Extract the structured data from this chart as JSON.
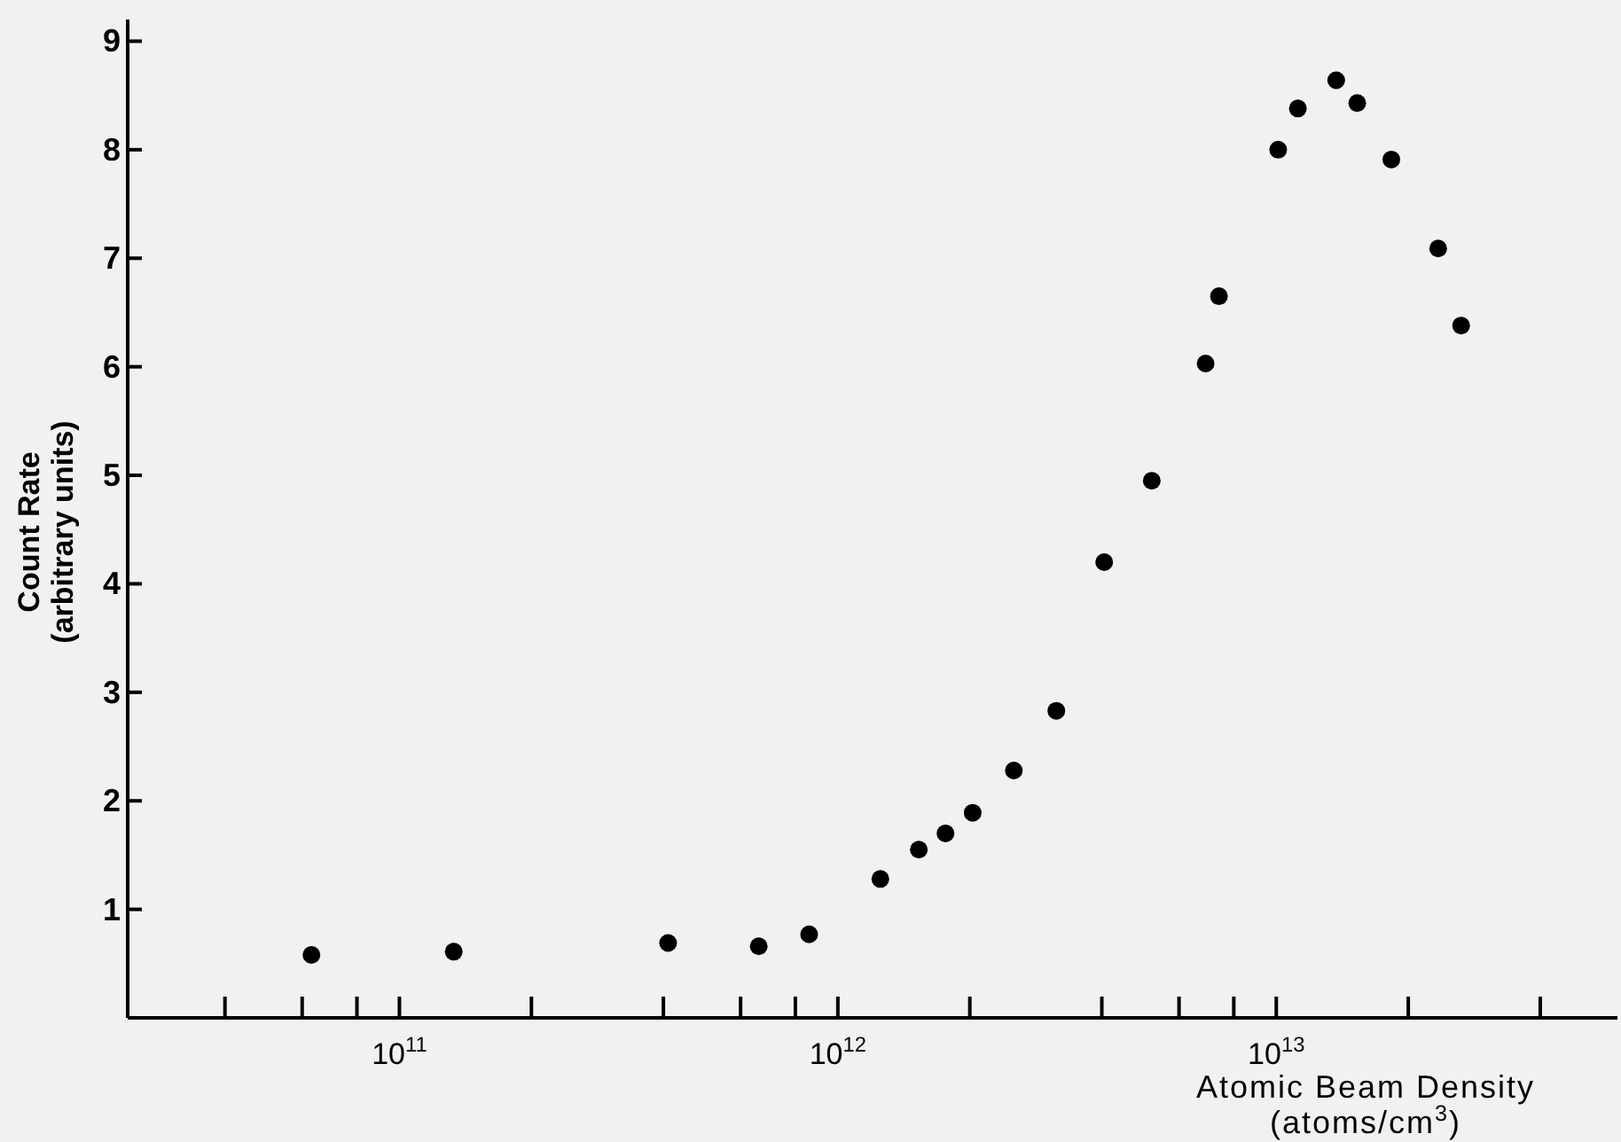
{
  "chart_data": {
    "type": "scatter",
    "xlabel": "Atomic Beam Density\n(atoms/cm$^{3}$)",
    "ylabel": "Count Rate\n(arbitrary units)",
    "log": "x",
    "marker": "circle",
    "grid": false,
    "xlim": [
      24000000000.0,
      60000000000000.0
    ],
    "ylim": [
      0,
      9.2
    ],
    "xticks": [
      {
        "value": 40000000000.0,
        "label": null
      },
      {
        "value": 60000000000.0,
        "label": null
      },
      {
        "value": 80000000000.0,
        "label": null
      },
      {
        "value": 100000000000.0,
        "label": "10$^{11}$"
      },
      {
        "value": 200000000000.0,
        "label": null
      },
      {
        "value": 400000000000.0,
        "label": null
      },
      {
        "value": 600000000000.0,
        "label": null
      },
      {
        "value": 800000000000.0,
        "label": null
      },
      {
        "value": 1000000000000.0,
        "label": "10$^{12}$"
      },
      {
        "value": 2000000000000.0,
        "label": null
      },
      {
        "value": 4000000000000.0,
        "label": null
      },
      {
        "value": 6000000000000.0,
        "label": null
      },
      {
        "value": 8000000000000.0,
        "label": null
      },
      {
        "value": 10000000000000.0,
        "label": "10$^{13}$"
      },
      {
        "value": 20000000000000.0,
        "label": null
      },
      {
        "value": 40000000000000.0,
        "label": null
      }
    ],
    "yticks": [
      1,
      2,
      3,
      4,
      5,
      6,
      7,
      8,
      9
    ],
    "series": [
      {
        "color": "#000000",
        "x": [
          63000000000.0,
          133000000000.0,
          410000000000.0,
          660000000000.0,
          860000000000.0,
          1250000000000.0,
          1530000000000.0,
          1760000000000.0,
          2030000000000.0,
          2520000000000.0,
          3150000000000.0,
          4050000000000.0,
          5200000000000.0,
          6900000000000.0,
          7400000000000.0,
          10100000000000.0,
          11200000000000.0,
          13700000000000.0,
          15300000000000.0,
          18300000000000.0,
          23400000000000.0,
          26400000000000.0
        ],
        "values": [
          0.58,
          0.61,
          0.69,
          0.66,
          0.77,
          1.28,
          1.55,
          1.7,
          1.89,
          2.28,
          2.83,
          4.2,
          4.95,
          6.03,
          6.65,
          8.0,
          8.38,
          8.64,
          8.43,
          7.91,
          7.09,
          6.38
        ]
      }
    ]
  }
}
